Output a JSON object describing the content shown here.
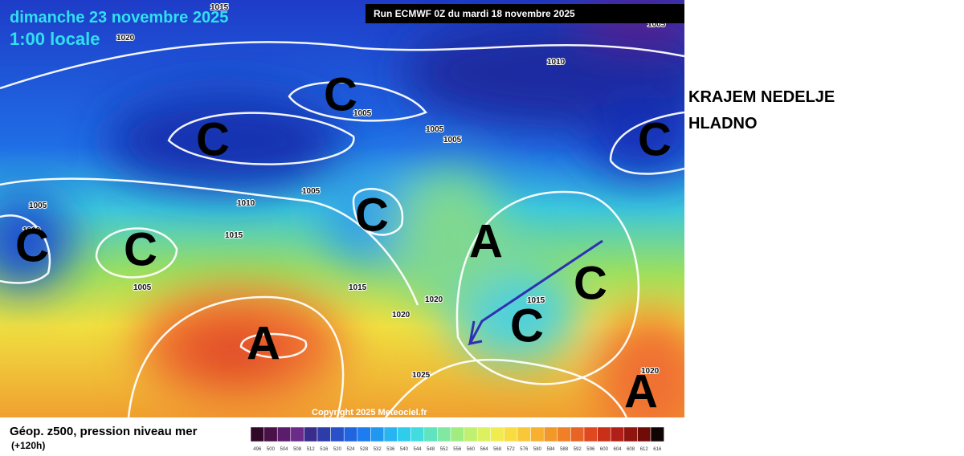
{
  "header": {
    "date": "dimanche 23 novembre 2025",
    "time": "1:00 locale",
    "run": "Run ECMWF 0Z du mardi 18 novembre 2025"
  },
  "annotation": {
    "line1": "KRAJEM NEDELJE",
    "line2": "HLADNO"
  },
  "footer": {
    "title": "Géop. z500, pression niveau mer",
    "lead": "(+120h)",
    "copyright": "Copyright 2025 Meteociel.fr"
  },
  "isobar_labels": [
    "1015",
    "1020",
    "1005",
    "1010",
    "1005",
    "1005",
    "1005",
    "1010",
    "1005",
    "1000",
    "1015",
    "1005",
    "1015",
    "1020",
    "1020",
    "1015",
    "1025",
    "1020",
    "1005"
  ],
  "systems": [
    "C",
    "C",
    "C",
    "C",
    "C",
    "C",
    "A",
    "C",
    "C",
    "A",
    "A"
  ],
  "colorbar": [
    496,
    500,
    504,
    508,
    512,
    516,
    520,
    524,
    528,
    532,
    536,
    540,
    544,
    548,
    552,
    556,
    560,
    564,
    568,
    572,
    576,
    580,
    584,
    588,
    592,
    596,
    600,
    604,
    608,
    612,
    616
  ]
}
